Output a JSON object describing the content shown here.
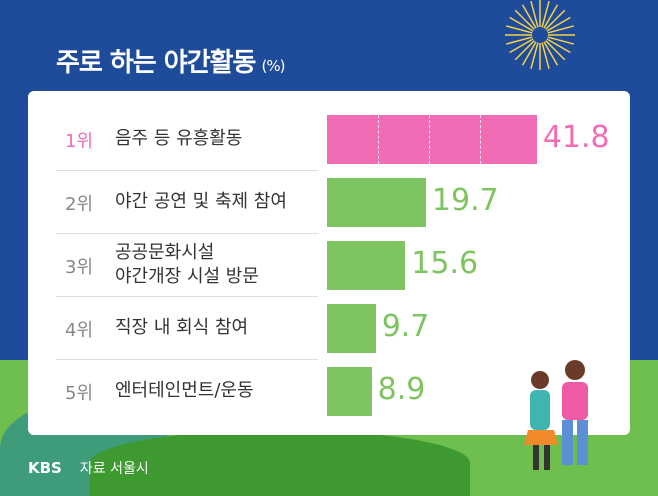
{
  "chart_data": {
    "type": "bar",
    "title": "주로 하는 야간활동",
    "unit": "(%)",
    "ranks": [
      "1위",
      "2위",
      "3위",
      "4위",
      "5위"
    ],
    "categories": [
      "음주 등 유흥활동",
      "야간 공연 및 축제 참여",
      "공공문화시설\n야간개장 시설 방문",
      "직장 내 회식 참여",
      "엔터테인먼트/운동"
    ],
    "values": [
      41.8,
      19.7,
      15.6,
      9.7,
      8.9
    ],
    "xlim": [
      0,
      45
    ]
  },
  "colors": {
    "highlight": "#f06db5",
    "bar": "#7ec460",
    "bg": "#1f4c9a"
  },
  "footer": {
    "logo": "KBS",
    "source": "자료 서울시"
  }
}
